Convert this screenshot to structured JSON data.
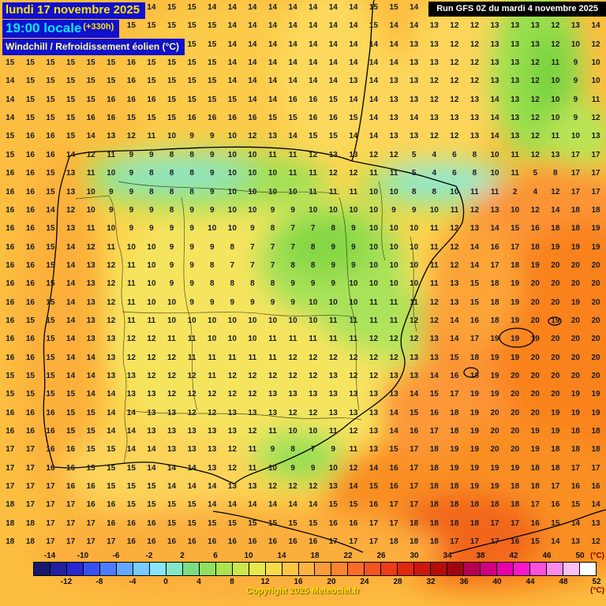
{
  "header": {
    "date_line": "lundi 17 novembre 2025",
    "time_label": "19:00 locale",
    "offset": "(+330h)",
    "param_line": "Windchill / Refroidissement éolien (°C)",
    "run_line": "Run GFS 0Z du mardi 4 novembre 2025"
  },
  "footer": {
    "copyright": "Copyright 2025 Meteociel.fr"
  },
  "scale": {
    "unit": "(°C)",
    "top_labels": [
      "-14",
      "-10",
      "-6",
      "-2",
      "2",
      "6",
      "10",
      "14",
      "18",
      "22",
      "26",
      "30",
      "34",
      "38",
      "42",
      "46",
      "50"
    ],
    "bottom_labels": [
      "-12",
      "-8",
      "-4",
      "0",
      "4",
      "8",
      "12",
      "16",
      "20",
      "24",
      "28",
      "32",
      "36",
      "40",
      "44",
      "48",
      "52"
    ],
    "colors": [
      "#18186E",
      "#2020A0",
      "#2828D0",
      "#3850F0",
      "#4C7CFF",
      "#60A8FF",
      "#74CCFF",
      "#88E4FA",
      "#84E8C8",
      "#7CDC84",
      "#90E060",
      "#ACE450",
      "#CCE84C",
      "#E8E84C",
      "#F8DC4C",
      "#FCC844",
      "#FCB440",
      "#FC9C38",
      "#FC8430",
      "#FC6C28",
      "#F45420",
      "#EC3C18",
      "#E02810",
      "#CC180C",
      "#B40C08",
      "#A00410",
      "#B80050",
      "#D00080",
      "#E800AC",
      "#F818C8",
      "#FC50DC",
      "#FC8CE8",
      "#FCC0F0",
      "#FFFFFF"
    ]
  },
  "theme": {
    "banner_bg": "#1010CE",
    "date_color": "#FFE400",
    "time_color": "#00E8FF",
    "offset_color": "#FFE400",
    "param_color": "#FFFFA0",
    "run_bg": "#000000",
    "run_color": "#FFFFFF",
    "unit_color": "#8B0000",
    "copyright_color": "#FFE400"
  },
  "grid": {
    "rows": [
      "15 15 15 14 15 15 15 14 15 15 14 14 14 14 14 14 14 14 15 15 14 14 13 12 12 13 13 12 12 14",
      "15 15 15 15 15 15 15 15 15 15 15 14 14 14 14 14 14 14 15 14 14 13 12 12 13 13 13 12 13 14",
      "14 15 15 15 15 15 15 15 15 15 15 14 14 14 14 14 14 14 14 14 13 13 12 12 13 13 13 12 10 12",
      "15 15 15 15 15 15 16 15 15 15 15 14 14 14 14 14 14 14 14 14 13 13 12 12 13 13 12 11 9 10",
      "14 15 15 15 15 15 16 15 15 15 15 14 14 14 14 14 14 13 14 13 13 12 12 12 13 13 12 10 9 10",
      "14 15 15 15 15 16 16 16 15 15 15 15 14 14 16 16 15 14 14 13 13 12 12 13 14 13 12 10 9 11",
      "14 15 15 15 16 16 15 15 15 16 16 16 16 15 15 16 16 15 14 13 14 13 13 13 14 13 12 10 9 12",
      "15 16 16 15 14 13 12 11 10 9 9 10 12 13 14 15 15 14 14 13 13 12 12 13 14 13 12 11 10 13",
      "15 16 16 14 12 11 9 9 8 8 9 10 10 11 11 12 13 13 12 12 5 4 6 8 10 11 12 13 17 17",
      "16 16 15 13 11 10 9 8 8 8 9 10 10 10 11 11 12 12 11 11 5 4 6 8 10 11 5 8 17 17",
      "16 16 15 13 10 9 9 8 8 8 9 10 10 10 10 11 11 11 10 10 8 8 10 11 11 2 4 12 17 17",
      "16 16 14 12 10 9 9 9 8 9 9 10 10 9 9 10 10 10 10 9 9 10 11 12 13 10 12 14 18 18",
      "16 16 15 13 11 10 9 9 9 9 10 10 9 8 7 7 8 9 10 10 10 11 12 13 14 15 16 18 18 19",
      "16 16 15 14 12 11 10 10 9 9 9 8 7 7 7 8 9 9 10 10 10 11 12 14 16 17 18 19 19 19",
      "16 16 15 14 13 12 11 10 9 9 8 7 7 7 8 8 9 9 10 10 10 11 12 14 17 18 19 20 20 20",
      "16 16 15 14 13 12 11 10 9 9 8 8 8 8 9 9 9 10 10 10 10 11 13 15 18 19 20 20 20 20",
      "16 16 15 14 13 12 11 10 10 9 9 9 9 9 9 10 10 10 11 11 11 12 13 15 18 19 20 20 19 20",
      "16 15 15 14 13 12 11 11 10 10 10 10 10 10 10 10 11 11 11 11 12 12 14 16 18 19 20 19 20 20",
      "16 16 15 14 13 13 12 12 11 11 10 10 10 11 11 11 11 11 12 12 12 13 14 17 19 19 19 20 20 20",
      "16 16 15 14 14 13 12 12 12 11 11 11 11 11 12 12 12 12 12 12 13 13 15 18 19 19 20 20 20 20",
      "15 15 15 14 14 13 13 12 12 12 11 12 12 12 12 12 13 12 12 13 13 14 16 18 19 20 20 20 20 20",
      "15 15 15 15 14 14 13 13 12 12 12 12 12 13 13 13 13 13 13 13 14 15 17 19 19 20 20 20 19 19",
      "16 16 16 15 15 14 14 13 13 12 12 13 13 13 12 12 13 13 13 14 15 16 18 19 20 20 20 19 19 19",
      "16 16 16 15 15 14 14 13 13 13 13 13 12 11 10 10 11 12 13 14 16 17 18 19 20 20 19 19 18 18",
      "17 17 16 16 15 15 14 14 13 13 13 12 11 9 8 7 9 11 13 15 17 18 19 19 20 20 19 18 18 18",
      "17 17 16 16 15 15 15 14 14 14 13 12 11 10 9 9 10 12 14 16 17 18 19 19 19 19 18 18 17 17",
      "17 17 17 16 16 15 15 15 14 14 14 13 13 12 12 12 13 14 15 16 17 18 18 19 19 18 18 17 16 16",
      "18 17 17 17 16 16 15 15 15 15 14 14 14 14 14 14 15 15 16 17 17 18 18 18 18 18 17 16 15 14",
      "18 18 17 17 17 16 16 16 15 15 15 15 15 15 15 15 16 16 17 17 18 18 18 18 17 17 16 15 14 13",
      "18 18 17 17 17 17 16 16 16 16 16 16 16 16 16 16 17 17 17 18 18 18 17 17 17 16 15 14 13 12"
    ]
  }
}
